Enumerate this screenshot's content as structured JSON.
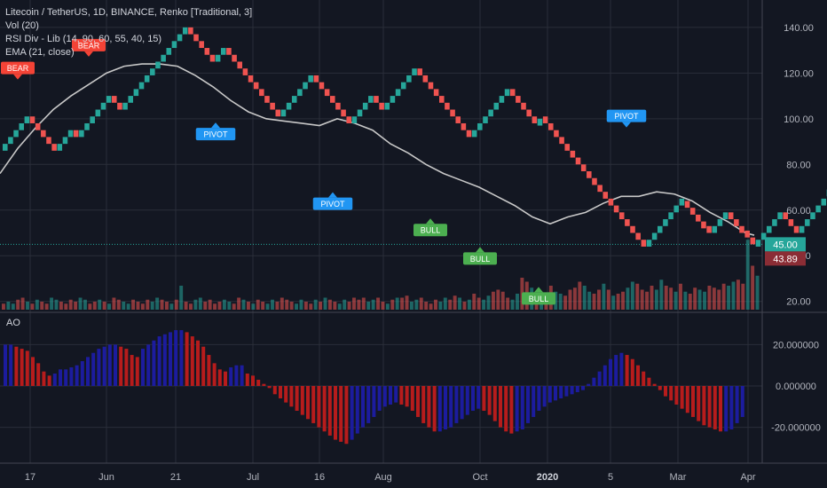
{
  "header": {
    "title": "Litecoin / TetherUS, 1D, BINANCE, Renko [Traditional, 3]",
    "indicators": [
      "Vol (20)",
      "RSI Div - Lib (14, 90, 60, 55, 40, 15)",
      "EMA (21, close)"
    ]
  },
  "ao_pane": {
    "title": "AO"
  },
  "colors": {
    "background": "#131722",
    "grid": "#2a2e39",
    "brick_up": "#26a69a",
    "brick_down": "#ef5350",
    "ema": "#c8c8c8",
    "ao_up": "#1c1c9e",
    "ao_down": "#b71c1c",
    "bull_label": "#4caf50",
    "bear_label": "#f44336",
    "pivot_label": "#2196f3",
    "last_price": "#26a69a",
    "price_marker2": "#8b2d35"
  },
  "chart_data": [
    {
      "type": "renko",
      "pane": "price",
      "brick_size": 3,
      "ylim": [
        16,
        152
      ],
      "y_ticks": [
        "20.00",
        "40.00",
        "60.00",
        "80.00",
        "100.00",
        "120.00",
        "140.00"
      ],
      "x_ticks": [
        "17",
        "Jun",
        "21",
        "Jul",
        "16",
        "Aug",
        "Oct",
        "2020",
        "5",
        "Mar",
        "Apr"
      ],
      "brick_path": [
        0,
        86,
        101,
        86,
        95,
        92,
        104,
        110,
        104,
        140,
        128,
        125,
        131,
        110,
        101,
        119,
        107,
        98,
        110,
        104,
        122,
        110,
        92,
        98,
        113,
        97,
        101,
        65,
        62,
        44,
        50,
        59,
        64,
        53,
        50,
        59,
        51,
        44,
        56,
        59,
        50,
        50,
        66,
        72,
        69,
        66,
        71,
        59,
        56,
        59
      ],
      "ema": [
        [
          0,
          76
        ],
        [
          20,
          87
        ],
        [
          40,
          96
        ],
        [
          60,
          104
        ],
        [
          80,
          110
        ],
        [
          100,
          115
        ],
        [
          120,
          120
        ],
        [
          140,
          123
        ],
        [
          160,
          124
        ],
        [
          180,
          124
        ],
        [
          200,
          123
        ],
        [
          220,
          119
        ],
        [
          240,
          114
        ],
        [
          260,
          108
        ],
        [
          280,
          103
        ],
        [
          300,
          100
        ],
        [
          320,
          99
        ],
        [
          340,
          98
        ],
        [
          360,
          97
        ],
        [
          380,
          100
        ],
        [
          400,
          98
        ],
        [
          420,
          95
        ],
        [
          440,
          89
        ],
        [
          460,
          85
        ],
        [
          480,
          80
        ],
        [
          500,
          76
        ],
        [
          520,
          73
        ],
        [
          540,
          70
        ],
        [
          560,
          66
        ],
        [
          580,
          62
        ],
        [
          600,
          57
        ],
        [
          620,
          54
        ],
        [
          640,
          57
        ],
        [
          660,
          59
        ],
        [
          680,
          63
        ],
        [
          700,
          66
        ],
        [
          720,
          66
        ],
        [
          740,
          68
        ],
        [
          760,
          67
        ],
        [
          780,
          64
        ],
        [
          800,
          59
        ],
        [
          820,
          55
        ],
        [
          840,
          50
        ],
        [
          850,
          49
        ]
      ],
      "volume": [
        3,
        4,
        3,
        5,
        6,
        4,
        3,
        5,
        4,
        3,
        6,
        5,
        4,
        3,
        5,
        4,
        6,
        5,
        3,
        4,
        5,
        4,
        3,
        6,
        5,
        4,
        3,
        5,
        4,
        3,
        5,
        4,
        6,
        5,
        4,
        3,
        5,
        12,
        4,
        3,
        5,
        6,
        4,
        5,
        3,
        4,
        5,
        4,
        3,
        6,
        5,
        4,
        3,
        5,
        4,
        3,
        5,
        4,
        6,
        5,
        4,
        3,
        5,
        4,
        3,
        5,
        4,
        6,
        5,
        4,
        3,
        5,
        4,
        6,
        5,
        6,
        4,
        5,
        6,
        4,
        3,
        5,
        6,
        6,
        7,
        4,
        5,
        6,
        4,
        3,
        5,
        4,
        6,
        5,
        7,
        6,
        4,
        5,
        8,
        6,
        5,
        7,
        9,
        10,
        9,
        6,
        5,
        8,
        16,
        14,
        11,
        6,
        5,
        8,
        12,
        9,
        8,
        7,
        10,
        11,
        14,
        12,
        9,
        8,
        10,
        13,
        10,
        7,
        8,
        9,
        11,
        14,
        13,
        10,
        9,
        12,
        10,
        15,
        12,
        11,
        9,
        13,
        9,
        8,
        11,
        10,
        9,
        12,
        11,
        10,
        13,
        12,
        14,
        15,
        13,
        35,
        22,
        17
      ],
      "last_price": "45.00",
      "price_marker_2": "43.89",
      "labels": [
        {
          "text": "BEAR",
          "kind": "bear",
          "xi": 20,
          "y": 119.5,
          "dir": "down"
        },
        {
          "text": "BEAR",
          "kind": "bear",
          "xi": 100,
          "y": 129.5,
          "dir": "down"
        },
        {
          "text": "BEAR",
          "kind": "bear",
          "xi": 205,
          "y": 155,
          "dir": "down"
        },
        {
          "text": "PIVOT",
          "kind": "pivot",
          "xi": 243,
          "y": 96,
          "dir": "up"
        },
        {
          "text": "PIVOT",
          "kind": "pivot",
          "xi": 375,
          "y": 65.5,
          "dir": "up"
        },
        {
          "text": "PIVOT",
          "kind": "pivot",
          "xi": 706,
          "y": 98.5,
          "dir": "down"
        },
        {
          "text": "BULL",
          "kind": "bull",
          "xi": 485,
          "y": 54,
          "dir": "up"
        },
        {
          "text": "BULL",
          "kind": "bull",
          "xi": 541,
          "y": 41.5,
          "dir": "up"
        },
        {
          "text": "BULL",
          "kind": "bull",
          "xi": 607,
          "y": 24,
          "dir": "up"
        }
      ]
    },
    {
      "type": "bar",
      "pane": "ao",
      "name": "AO",
      "ylim": [
        -33,
        30
      ],
      "y_ticks": [
        "20.000000",
        "0.000000",
        "-20.000000"
      ],
      "values": [
        20,
        20,
        19,
        18,
        17,
        14,
        11,
        7,
        5,
        6,
        8,
        8,
        9,
        10,
        12,
        14,
        16,
        18,
        19,
        20,
        20,
        19,
        18,
        15,
        14,
        18,
        20,
        22,
        24,
        25,
        26,
        27,
        27,
        26,
        24,
        22,
        19,
        15,
        11,
        8,
        7,
        9,
        10,
        10,
        6,
        5,
        3,
        1,
        -1,
        -4,
        -6,
        -8,
        -10,
        -12,
        -14,
        -16,
        -18,
        -20,
        -22,
        -24,
        -26,
        -27,
        -28,
        -26,
        -23,
        -20,
        -18,
        -15,
        -12,
        -10,
        -9,
        -8,
        -9,
        -10,
        -12,
        -15,
        -18,
        -20,
        -22,
        -22,
        -21,
        -20,
        -18,
        -16,
        -14,
        -12,
        -11,
        -12,
        -14,
        -17,
        -20,
        -22,
        -23,
        -22,
        -21,
        -18,
        -15,
        -12,
        -10,
        -8,
        -7,
        -6,
        -5,
        -4,
        -3,
        -2,
        1,
        4,
        7,
        10,
        13,
        15,
        16,
        15,
        13,
        10,
        7,
        4,
        1,
        -2,
        -5,
        -7,
        -9,
        -11,
        -13,
        -15,
        -17,
        -19,
        -20,
        -21,
        -22,
        -22,
        -21,
        -18,
        -15
      ]
    }
  ]
}
